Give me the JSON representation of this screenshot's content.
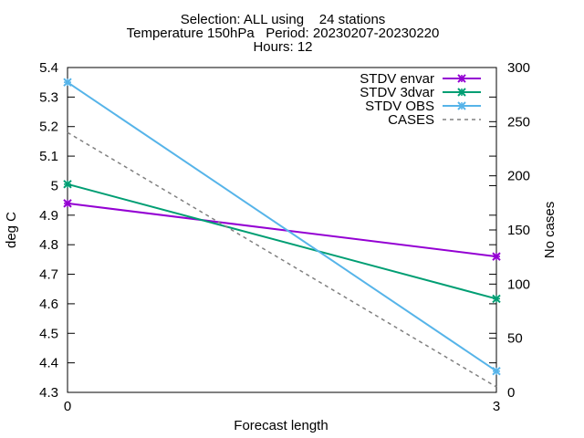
{
  "chart_data": {
    "type": "line",
    "title_lines": [
      "Selection: ALL using    24 stations",
      "Temperature 150hPa   Period: 20230207-20230220",
      "Hours: 12"
    ],
    "xlabel": "Forecast length",
    "ylabel": "deg C",
    "y2label": "No cases",
    "x": [
      0,
      3
    ],
    "xticks": [
      "0",
      "3"
    ],
    "xlim": [
      0,
      3
    ],
    "ylim": [
      4.3,
      5.4
    ],
    "yticks": [
      "4.3",
      "4.4",
      "4.5",
      "4.6",
      "4.7",
      "4.8",
      "4.9",
      "5",
      "5.1",
      "5.2",
      "5.3",
      "5.4"
    ],
    "y2lim": [
      0,
      300
    ],
    "y2ticks": [
      "0",
      "50",
      "100",
      "150",
      "200",
      "250",
      "300"
    ],
    "grid": false,
    "legend_position": "top-right",
    "series": [
      {
        "name": "STDV envar",
        "axis": "y",
        "values": [
          4.94,
          4.76
        ],
        "color": "#9400d3",
        "marker": "x",
        "dash": "none"
      },
      {
        "name": "STDV 3dvar",
        "axis": "y",
        "values": [
          5.005,
          4.617
        ],
        "color": "#009e73",
        "marker": "x",
        "dash": "none"
      },
      {
        "name": "STDV OBS",
        "axis": "y",
        "values": [
          5.35,
          4.372
        ],
        "color": "#56b4e9",
        "marker": "x",
        "dash": "none"
      },
      {
        "name": "CASES",
        "axis": "y2",
        "values": [
          240,
          5
        ],
        "color": "#808080",
        "marker": "none",
        "dash": "4,4"
      }
    ]
  }
}
